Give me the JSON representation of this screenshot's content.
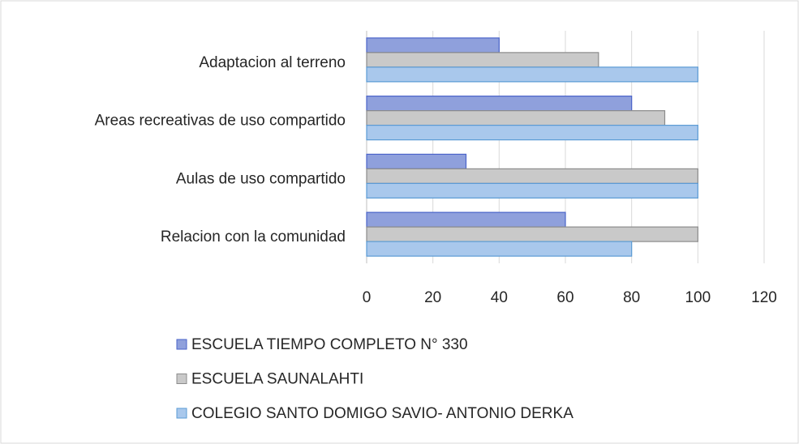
{
  "chart_data": {
    "type": "bar",
    "orientation": "horizontal",
    "categories": [
      "Adaptacion al terreno",
      "Areas recreativas de uso compartido",
      "Aulas de uso compartido",
      "Relacion con la comunidad"
    ],
    "series": [
      {
        "name": "ESCUELA TIEMPO COMPLETO N° 330",
        "color": "#8fa0dc",
        "values": [
          40,
          80,
          30,
          60
        ]
      },
      {
        "name": "ESCUELA SAUNALAHTI",
        "color": "#c9c9c9",
        "values": [
          70,
          90,
          100,
          100
        ]
      },
      {
        "name": "COLEGIO SANTO DOMIGO SAVIO- ANTONIO DERKA",
        "color": "#a9c8ec",
        "values": [
          100,
          100,
          100,
          80
        ]
      }
    ],
    "xlim": [
      0,
      120
    ],
    "xticks": [
      0,
      20,
      40,
      60,
      80,
      100,
      120
    ],
    "grid": true
  }
}
